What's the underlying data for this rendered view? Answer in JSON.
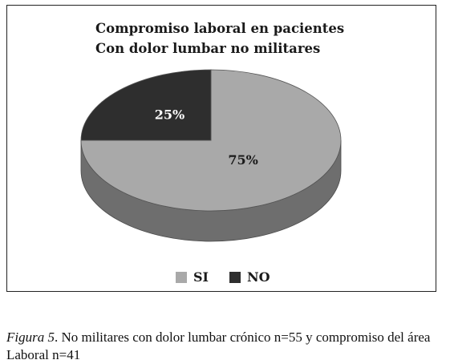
{
  "chart_data": {
    "type": "pie",
    "title_lines": [
      "Compromiso laboral en pacientes",
      "Con dolor lumbar no militares"
    ],
    "slices": [
      {
        "label": "SI",
        "value": 75,
        "value_label": "75%",
        "color": "#a9a9a9",
        "side_color": "#6e6e6e",
        "text_color": "#1a1a1a"
      },
      {
        "label": "NO",
        "value": 25,
        "value_label": "25%",
        "color": "#2e2e2e",
        "side_color": "#151515",
        "text_color": "#ffffff"
      }
    ],
    "legend": {
      "position": "bottom",
      "items": [
        {
          "label": "SI",
          "color": "#a9a9a9"
        },
        {
          "label": "NO",
          "color": "#2e2e2e"
        }
      ]
    },
    "style": "3d-pie"
  },
  "caption": {
    "label": "Figura 5",
    "text": ". No militares con dolor lumbar crónico n=55 y compromiso del área Laboral n=41"
  }
}
